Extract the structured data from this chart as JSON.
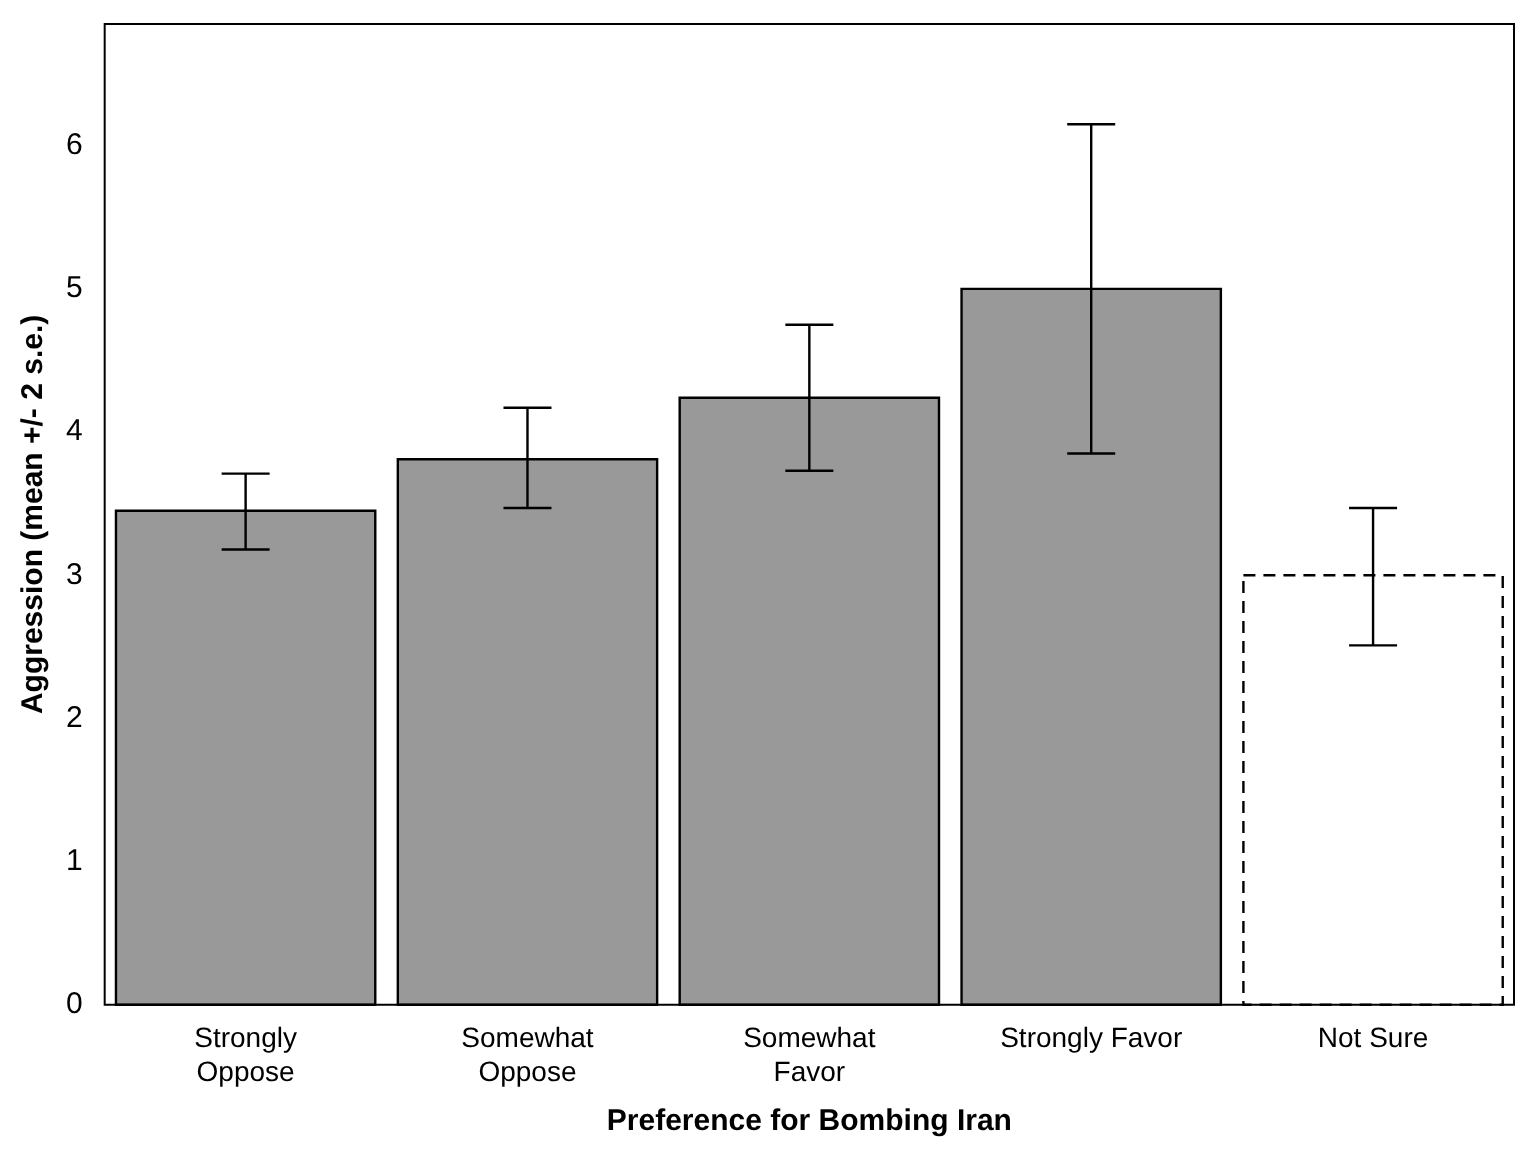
{
  "chart_data": {
    "type": "bar",
    "xlabel": "Preference for Bombing Iran",
    "ylabel": "Aggression (mean +/- 2 s.e.)",
    "categories": [
      "Strongly\nOppose",
      "Somewhat\nOppose",
      "Somewhat\nFavor",
      "Strongly Favor",
      "Not Sure"
    ],
    "series": [
      {
        "color": "#999999",
        "values": [
          3.45,
          3.81,
          4.24,
          5.0,
          null
        ],
        "errors": [
          [
            3.18,
            3.71
          ],
          [
            3.47,
            4.17
          ],
          [
            3.73,
            4.75
          ],
          [
            3.85,
            6.15
          ],
          null
        ],
        "line_style": "solid"
      },
      {
        "color": "#ffffff",
        "values": [
          null,
          null,
          null,
          null,
          3.0
        ],
        "errors": [
          null,
          null,
          null,
          null,
          [
            2.51,
            3.47
          ]
        ],
        "line_style": "dashed"
      }
    ],
    "ylim": [
      0,
      6.85
    ],
    "yticks": [
      0,
      1,
      2,
      3,
      4,
      5,
      6
    ],
    "grid": false,
    "legend": false
  }
}
